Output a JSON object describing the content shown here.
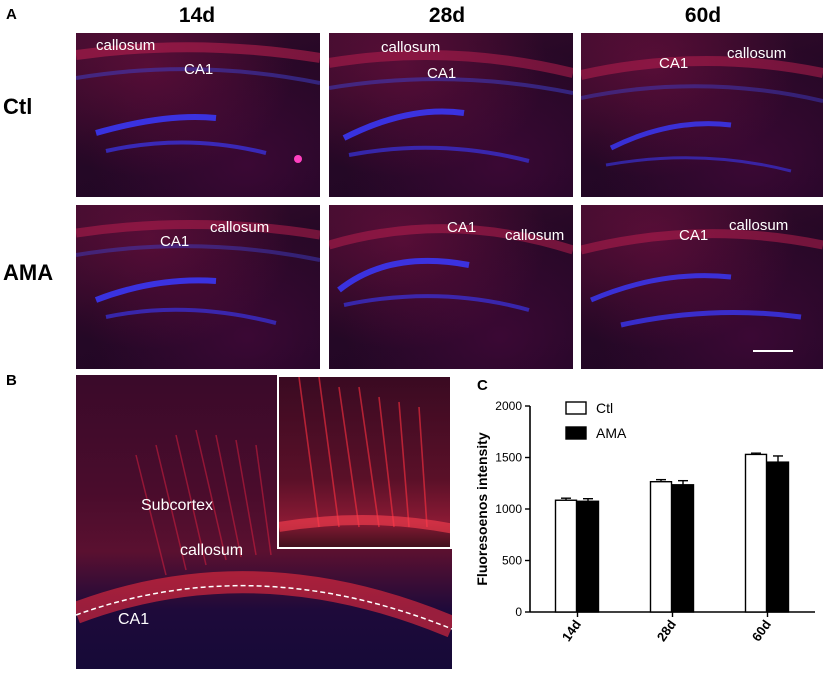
{
  "panel_labels": {
    "a": "A",
    "b": "B",
    "c": "C"
  },
  "column_headers": [
    "14d",
    "28d",
    "60d"
  ],
  "row_headers": [
    "Ctl",
    "AMA"
  ],
  "micrographs": [
    {
      "row": "Ctl",
      "col": "14d",
      "labels": [
        "callosum",
        "CA1"
      ]
    },
    {
      "row": "Ctl",
      "col": "28d",
      "labels": [
        "callosum",
        "CA1"
      ]
    },
    {
      "row": "Ctl",
      "col": "60d",
      "labels": [
        "CA1",
        "callosum"
      ]
    },
    {
      "row": "AMA",
      "col": "14d",
      "labels": [
        "CA1",
        "callosum"
      ]
    },
    {
      "row": "AMA",
      "col": "28d",
      "labels": [
        "CA1",
        "callosum"
      ]
    },
    {
      "row": "AMA",
      "col": "60d",
      "labels": [
        "CA1",
        "callosum"
      ]
    }
  ],
  "panel_b_labels": {
    "subcortex": "Subcortex",
    "callosum": "callosum",
    "ca1": "CA1"
  },
  "colors": {
    "red_stain": "#e0203a",
    "blue_stain": "#3a3aff",
    "background": "#2a0a2a"
  },
  "chart_data": {
    "type": "bar",
    "categories": [
      "14d",
      "28d",
      "60d"
    ],
    "series": [
      {
        "name": "Ctl",
        "values": [
          1085,
          1265,
          1530
        ],
        "errors": [
          20,
          20,
          12
        ],
        "color": "#ffffff"
      },
      {
        "name": "AMA",
        "values": [
          1075,
          1235,
          1455
        ],
        "errors": [
          25,
          40,
          60
        ],
        "color": "#000000"
      }
    ],
    "ylabel": "Fluoresoenos intensity",
    "xlabel": "",
    "ylim": [
      0,
      2000
    ],
    "yticks": [
      0,
      500,
      1000,
      1500,
      2000
    ],
    "legend_placement": "top-left",
    "grid": false
  }
}
